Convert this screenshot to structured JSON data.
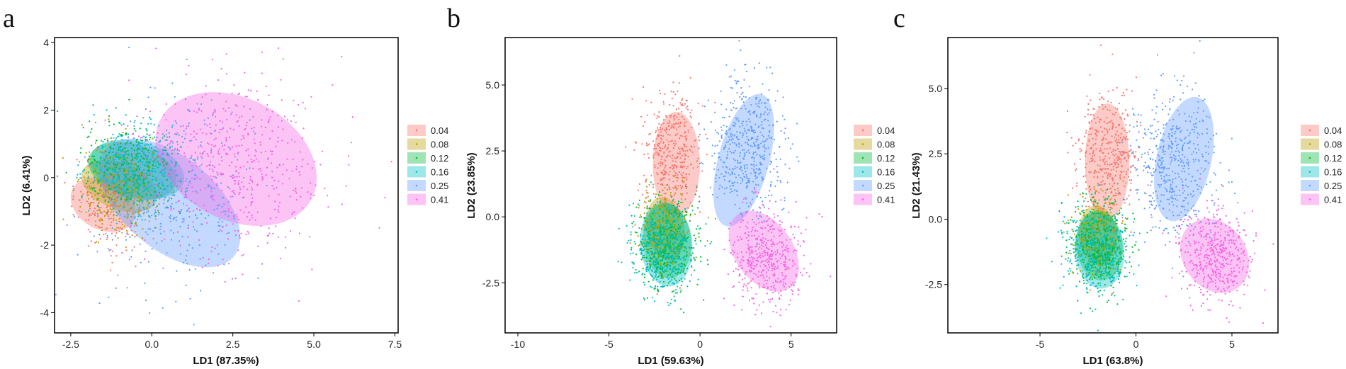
{
  "groups": [
    {
      "name": "0.04",
      "color": "#F8766D"
    },
    {
      "name": "0.08",
      "color": "#B79F00"
    },
    {
      "name": "0.12",
      "color": "#00BA38"
    },
    {
      "name": "0.16",
      "color": "#00BFC4"
    },
    {
      "name": "0.25",
      "color": "#619CFF"
    },
    {
      "name": "0.41",
      "color": "#F564E3"
    }
  ],
  "chart_data": [
    {
      "type": "scatter",
      "panel_label": "a",
      "xlabel": "LD1 (87.35%)",
      "ylabel": "LD2 (6.41%)",
      "xlim": [
        -3.0,
        7.6
      ],
      "ylim": [
        -4.6,
        4.15
      ],
      "xticks": [
        -2.5,
        0.0,
        2.5,
        5.0,
        7.5
      ],
      "xtick_labels": [
        "-2.5",
        "0.0",
        "2.5",
        "5.0",
        "7.5"
      ],
      "yticks": [
        -4,
        -2,
        0,
        2,
        4
      ],
      "ytick_labels": [
        "-4",
        "-2",
        "0",
        "2",
        "4"
      ],
      "legend_position": "right",
      "series": [
        {
          "name": "0.04",
          "center": [
            -1.3,
            -0.6
          ],
          "std": [
            0.55,
            0.75
          ],
          "n": 240,
          "ellipse": {
            "cx": -1.5,
            "cy": -0.8,
            "rx": 1.4,
            "ry": 1.85,
            "angle_deg": 62
          }
        },
        {
          "name": "0.08",
          "center": [
            -1.0,
            -0.35
          ],
          "std": [
            0.6,
            0.7
          ],
          "n": 300,
          "ellipse": {
            "cx": -1.0,
            "cy": -0.25,
            "rx": 1.3,
            "ry": 2.15,
            "angle_deg": 68
          }
        },
        {
          "name": "0.12",
          "center": [
            -0.7,
            0.25
          ],
          "std": [
            0.7,
            0.65
          ],
          "n": 360,
          "ellipse": {
            "cx": -0.6,
            "cy": 0.2,
            "rx": 1.5,
            "ry": 2.45,
            "angle_deg": 72
          }
        },
        {
          "name": "0.16",
          "center": [
            -0.5,
            0.3
          ],
          "std": [
            0.75,
            0.65
          ],
          "n": 360,
          "ellipse": {
            "cx": -0.45,
            "cy": 0.25,
            "rx": 1.55,
            "ry": 2.6,
            "angle_deg": 74
          }
        },
        {
          "name": "0.25",
          "center": [
            0.6,
            -0.4
          ],
          "std": [
            1.2,
            1.3
          ],
          "n": 420,
          "ellipse": {
            "cx": 0.55,
            "cy": -0.75,
            "rx": 2.6,
            "ry": 4.5,
            "angle_deg": 50
          }
        },
        {
          "name": "0.41",
          "center": [
            2.6,
            0.4
          ],
          "std": [
            1.4,
            1.4
          ],
          "n": 520,
          "ellipse": {
            "cx": 2.6,
            "cy": 0.55,
            "rx": 3.4,
            "ry": 4.6,
            "angle_deg": 62
          }
        }
      ]
    },
    {
      "type": "scatter",
      "panel_label": "b",
      "xlabel": "LD1 (59.63%)",
      "ylabel": "LD2 (23.85%)",
      "xlim": [
        -10.7,
        7.5
      ],
      "ylim": [
        -4.4,
        6.8
      ],
      "xticks": [
        -10,
        -5,
        0,
        5
      ],
      "xtick_labels": [
        "-10",
        "-5",
        "0",
        "5"
      ],
      "yticks": [
        -2.5,
        0.0,
        2.5,
        5.0
      ],
      "ytick_labels": [
        "-2.5",
        "0.0",
        "2.5",
        "5.0"
      ],
      "legend_position": "right",
      "series": [
        {
          "name": "0.04",
          "center": [
            -1.6,
            2.5
          ],
          "std": [
            0.8,
            1.1
          ],
          "n": 420,
          "ellipse": {
            "cx": -1.3,
            "cy": 2.0,
            "rx": 2.35,
            "ry": 3.6,
            "angle_deg": 0
          }
        },
        {
          "name": "0.08",
          "center": [
            -2.0,
            -0.5
          ],
          "std": [
            0.65,
            0.75
          ],
          "n": 320,
          "ellipse": {
            "cx": -1.9,
            "cy": -0.45,
            "rx": 1.9,
            "ry": 2.2,
            "angle_deg": 10
          }
        },
        {
          "name": "0.12",
          "center": [
            -1.8,
            -1.1
          ],
          "std": [
            0.8,
            0.85
          ],
          "n": 420,
          "ellipse": {
            "cx": -1.8,
            "cy": -0.9,
            "rx": 2.4,
            "ry": 2.6,
            "angle_deg": 5
          }
        },
        {
          "name": "0.16",
          "center": [
            -2.1,
            -1.2
          ],
          "std": [
            0.9,
            0.9
          ],
          "n": 420,
          "ellipse": {
            "cx": -1.85,
            "cy": -1.05,
            "rx": 2.6,
            "ry": 2.9,
            "angle_deg": 5
          }
        },
        {
          "name": "0.25",
          "center": [
            2.6,
            2.6
          ],
          "std": [
            1.0,
            1.35
          ],
          "n": 520,
          "ellipse": {
            "cx": 2.4,
            "cy": 2.15,
            "rx": 2.55,
            "ry": 4.7,
            "angle_deg": -15
          }
        },
        {
          "name": "0.41",
          "center": [
            3.6,
            -1.6
          ],
          "std": [
            1.0,
            0.95
          ],
          "n": 480,
          "ellipse": {
            "cx": 3.5,
            "cy": -1.3,
            "rx": 2.9,
            "ry": 3.1,
            "angle_deg": 35
          }
        }
      ]
    },
    {
      "type": "scatter",
      "panel_label": "c",
      "xlabel": "LD1 (63.8%)",
      "ylabel": "LD2 (21.43%)",
      "xlim": [
        -9.8,
        7.4
      ],
      "ylim": [
        -4.35,
        6.95
      ],
      "xticks": [
        -5,
        0,
        5
      ],
      "xtick_labels": [
        "-5",
        "0",
        "5"
      ],
      "yticks": [
        -2.5,
        0.0,
        2.5,
        5.0
      ],
      "ytick_labels": [
        "-2.5",
        "0.0",
        "2.5",
        "5.0"
      ],
      "legend_position": "right",
      "series": [
        {
          "name": "0.04",
          "center": [
            -1.4,
            2.5
          ],
          "std": [
            0.8,
            1.2
          ],
          "n": 420,
          "ellipse": {
            "cx": -1.5,
            "cy": 2.2,
            "rx": 2.1,
            "ry": 4.05,
            "angle_deg": 0
          }
        },
        {
          "name": "0.08",
          "center": [
            -2.0,
            -0.6
          ],
          "std": [
            0.6,
            0.75
          ],
          "n": 320,
          "ellipse": {
            "cx": -2.0,
            "cy": -0.6,
            "rx": 1.8,
            "ry": 2.05,
            "angle_deg": 5
          }
        },
        {
          "name": "0.12",
          "center": [
            -1.9,
            -1.1
          ],
          "std": [
            0.75,
            0.8
          ],
          "n": 420,
          "ellipse": {
            "cx": -1.9,
            "cy": -1.0,
            "rx": 2.2,
            "ry": 2.45,
            "angle_deg": 5
          }
        },
        {
          "name": "0.16",
          "center": [
            -2.0,
            -1.2
          ],
          "std": [
            0.85,
            0.9
          ],
          "n": 420,
          "ellipse": {
            "cx": -1.9,
            "cy": -1.2,
            "rx": 2.35,
            "ry": 2.65,
            "angle_deg": 5
          }
        },
        {
          "name": "0.25",
          "center": [
            1.9,
            2.1
          ],
          "std": [
            1.1,
            1.5
          ],
          "n": 520,
          "ellipse": {
            "cx": 2.5,
            "cy": 2.3,
            "rx": 2.6,
            "ry": 4.4,
            "angle_deg": -12
          }
        },
        {
          "name": "0.41",
          "center": [
            4.1,
            -1.3
          ],
          "std": [
            1.0,
            0.85
          ],
          "n": 480,
          "ellipse": {
            "cx": 4.1,
            "cy": -1.4,
            "rx": 3.0,
            "ry": 2.75,
            "angle_deg": 35
          }
        }
      ]
    }
  ]
}
